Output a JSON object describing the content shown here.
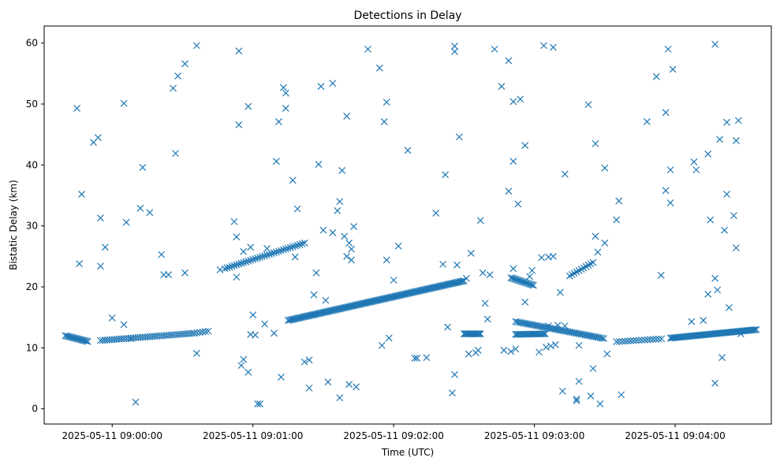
{
  "chart_data": {
    "type": "scatter",
    "title": "Detections in Delay",
    "xlabel": "Time (UTC)",
    "ylabel": "Bistatic Delay (km)",
    "x_unit": "time",
    "xlim": [
      "2025-05-11 08:59:31",
      "2025-05-11 09:04:41"
    ],
    "ylim": [
      -2.5,
      62.8
    ],
    "x_ticks": [
      {
        "value": "2025-05-11 09:00:00",
        "label": "2025-05-11 09:00:00"
      },
      {
        "value": "2025-05-11 09:01:00",
        "label": "2025-05-11 09:01:00"
      },
      {
        "value": "2025-05-11 09:02:00",
        "label": "2025-05-11 09:02:00"
      },
      {
        "value": "2025-05-11 09:03:00",
        "label": "2025-05-11 09:03:00"
      },
      {
        "value": "2025-05-11 09:04:00",
        "label": "2025-05-11 09:04:00"
      }
    ],
    "y_ticks": [
      0,
      10,
      20,
      30,
      40,
      50,
      60
    ],
    "grid": false,
    "legend": "none",
    "marker": "x",
    "color": "#1f77b4",
    "series": [
      {
        "tracks": [
          {
            "t": [
              "08:59:40",
              "08:59:50"
            ],
            "y": [
              12.0,
              11.0
            ],
            "step": 0.6
          },
          {
            "t": [
              "08:59:55",
              "09:00:35"
            ],
            "y": [
              11.2,
              12.4
            ],
            "step": 1.0
          },
          {
            "t": [
              "09:00:35",
              "09:00:42"
            ],
            "y": [
              12.4,
              12.8
            ],
            "step": 1.2
          },
          {
            "t": [
              "09:00:48",
              "09:01:22"
            ],
            "y": [
              23.0,
              27.2
            ],
            "step": 1.0
          },
          {
            "t": [
              "09:01:15",
              "09:02:30"
            ],
            "y": [
              14.5,
              21.0
            ],
            "step": 0.6
          },
          {
            "t": [
              "09:02:30",
              "09:02:37"
            ],
            "y": [
              12.3,
              12.3
            ],
            "step": 0.5
          },
          {
            "t": [
              "09:02:50",
              "09:03:00"
            ],
            "y": [
              21.5,
              20.2
            ],
            "step": 0.6
          },
          {
            "t": [
              "09:02:52",
              "09:03:05"
            ],
            "y": [
              12.2,
              12.3
            ],
            "step": 0.6
          },
          {
            "t": [
              "09:02:52",
              "09:03:30"
            ],
            "y": [
              14.3,
              11.5
            ],
            "step": 0.8
          },
          {
            "t": [
              "09:03:15",
              "09:03:25"
            ],
            "y": [
              21.8,
              24.0
            ],
            "step": 1.0
          },
          {
            "t": [
              "09:03:35",
              "09:03:55"
            ],
            "y": [
              11.0,
              11.5
            ],
            "step": 1.2
          },
          {
            "t": [
              "09:03:58",
              "09:04:35"
            ],
            "y": [
              11.6,
              13.0
            ],
            "step": 0.6
          }
        ],
        "points": [
          [
            "08:59:45",
            49.3
          ],
          [
            "08:59:47",
            35.2
          ],
          [
            "08:59:46",
            23.8
          ],
          [
            "08:59:52",
            43.7
          ],
          [
            "08:59:54",
            44.5
          ],
          [
            "08:59:55",
            31.3
          ],
          [
            "08:59:55",
            23.4
          ],
          [
            "08:59:57",
            26.5
          ],
          [
            "09:00:00",
            14.9
          ],
          [
            "09:00:05",
            50.1
          ],
          [
            "09:00:06",
            30.6
          ],
          [
            "09:00:05",
            13.8
          ],
          [
            "09:00:08",
            11.5
          ],
          [
            "09:00:10",
            1.1
          ],
          [
            "09:00:13",
            39.6
          ],
          [
            "09:00:12",
            32.9
          ],
          [
            "09:00:16",
            32.2
          ],
          [
            "09:00:21",
            25.3
          ],
          [
            "09:00:22",
            22.0
          ],
          [
            "09:00:24",
            22.0
          ],
          [
            "09:00:26",
            52.6
          ],
          [
            "09:00:27",
            41.9
          ],
          [
            "09:00:28",
            54.6
          ],
          [
            "09:00:31",
            56.6
          ],
          [
            "09:00:31",
            22.3
          ],
          [
            "09:00:36",
            9.1
          ],
          [
            "09:00:36",
            59.6
          ],
          [
            "09:00:46",
            22.8
          ],
          [
            "09:00:52",
            30.7
          ],
          [
            "09:00:53",
            28.2
          ],
          [
            "09:00:53",
            21.6
          ],
          [
            "09:00:54",
            58.7
          ],
          [
            "09:00:54",
            46.6
          ],
          [
            "09:00:55",
            7.1
          ],
          [
            "09:00:56",
            8.1
          ],
          [
            "09:00:56",
            25.8
          ],
          [
            "09:00:58",
            49.6
          ],
          [
            "09:00:58",
            6.0
          ],
          [
            "09:00:59",
            26.5
          ],
          [
            "09:00:59",
            12.2
          ],
          [
            "09:01:00",
            15.4
          ],
          [
            "09:01:01",
            12.1
          ],
          [
            "09:01:02",
            0.8
          ],
          [
            "09:01:03",
            0.8
          ],
          [
            "09:01:05",
            13.9
          ],
          [
            "09:01:06",
            26.3
          ],
          [
            "09:01:10",
            40.6
          ],
          [
            "09:01:11",
            47.1
          ],
          [
            "09:01:13",
            52.7
          ],
          [
            "09:01:14",
            51.8
          ],
          [
            "09:01:14",
            49.3
          ],
          [
            "09:01:12",
            5.2
          ],
          [
            "09:01:17",
            37.5
          ],
          [
            "09:01:18",
            24.9
          ],
          [
            "09:01:19",
            32.8
          ],
          [
            "09:01:09",
            12.4
          ],
          [
            "09:01:22",
            7.7
          ],
          [
            "09:01:24",
            8.0
          ],
          [
            "09:01:24",
            3.4
          ],
          [
            "09:01:26",
            18.7
          ],
          [
            "09:01:27",
            22.3
          ],
          [
            "09:01:28",
            40.1
          ],
          [
            "09:01:29",
            52.9
          ],
          [
            "09:01:30",
            29.3
          ],
          [
            "09:01:31",
            17.8
          ],
          [
            "09:01:32",
            4.4
          ],
          [
            "09:01:34",
            53.4
          ],
          [
            "09:01:34",
            28.9
          ],
          [
            "09:01:36",
            32.5
          ],
          [
            "09:01:37",
            34.0
          ],
          [
            "09:01:37",
            1.8
          ],
          [
            "09:01:38",
            39.1
          ],
          [
            "09:01:40",
            48.0
          ],
          [
            "09:01:39",
            28.3
          ],
          [
            "09:01:40",
            25.0
          ],
          [
            "09:01:41",
            27.2
          ],
          [
            "09:01:41",
            4.0
          ],
          [
            "09:01:42",
            26.2
          ],
          [
            "09:01:42",
            24.4
          ],
          [
            "09:01:43",
            29.9
          ],
          [
            "09:01:44",
            3.6
          ],
          [
            "09:01:49",
            59.0
          ],
          [
            "09:01:54",
            55.9
          ],
          [
            "09:01:55",
            10.4
          ],
          [
            "09:01:56",
            47.1
          ],
          [
            "09:01:57",
            24.4
          ],
          [
            "09:01:58",
            11.6
          ],
          [
            "09:01:57",
            50.3
          ],
          [
            "09:02:00",
            21.1
          ],
          [
            "09:02:02",
            26.7
          ],
          [
            "09:02:06",
            42.4
          ],
          [
            "09:02:09",
            8.3
          ],
          [
            "09:02:10",
            8.3
          ],
          [
            "09:02:14",
            8.4
          ],
          [
            "09:02:18",
            32.1
          ],
          [
            "09:02:21",
            23.7
          ],
          [
            "09:02:22",
            38.4
          ],
          [
            "09:02:23",
            13.4
          ],
          [
            "09:02:25",
            2.6
          ],
          [
            "09:02:26",
            5.6
          ],
          [
            "09:02:26",
            59.5
          ],
          [
            "09:02:26",
            58.6
          ],
          [
            "09:02:28",
            44.6
          ],
          [
            "09:02:27",
            23.6
          ],
          [
            "09:02:31",
            21.4
          ],
          [
            "09:02:32",
            9.0
          ],
          [
            "09:02:33",
            25.5
          ],
          [
            "09:02:35",
            9.2
          ],
          [
            "09:02:36",
            9.6
          ],
          [
            "09:02:37",
            30.9
          ],
          [
            "09:02:38",
            22.3
          ],
          [
            "09:02:39",
            17.3
          ],
          [
            "09:02:40",
            14.7
          ],
          [
            "09:02:41",
            22.0
          ],
          [
            "09:02:43",
            59.0
          ],
          [
            "09:02:46",
            52.9
          ],
          [
            "09:02:47",
            9.6
          ],
          [
            "09:02:49",
            57.1
          ],
          [
            "09:02:49",
            35.7
          ],
          [
            "09:02:50",
            9.4
          ],
          [
            "09:02:51",
            23.0
          ],
          [
            "09:02:51",
            40.6
          ],
          [
            "09:02:51",
            50.4
          ],
          [
            "09:02:52",
            9.8
          ],
          [
            "09:02:53",
            33.6
          ],
          [
            "09:02:54",
            50.8
          ],
          [
            "09:02:56",
            43.2
          ],
          [
            "09:02:56",
            17.5
          ],
          [
            "09:02:58",
            21.7
          ],
          [
            "09:02:59",
            22.7
          ],
          [
            "09:03:02",
            9.3
          ],
          [
            "09:03:03",
            24.8
          ],
          [
            "09:03:04",
            59.6
          ],
          [
            "09:03:05",
            10.1
          ],
          [
            "09:03:06",
            24.9
          ],
          [
            "09:03:06",
            13.6
          ],
          [
            "09:03:07",
            10.3
          ],
          [
            "09:03:08",
            25.0
          ],
          [
            "09:03:08",
            59.3
          ],
          [
            "09:03:09",
            10.5
          ],
          [
            "09:03:10",
            13.7
          ],
          [
            "09:03:11",
            19.1
          ],
          [
            "09:03:12",
            2.9
          ],
          [
            "09:03:13",
            38.5
          ],
          [
            "09:03:13",
            13.6
          ],
          [
            "09:03:18",
            1.6
          ],
          [
            "09:03:18",
            1.3
          ],
          [
            "09:03:19",
            4.5
          ],
          [
            "09:03:19",
            10.4
          ],
          [
            "09:03:23",
            49.9
          ],
          [
            "09:03:24",
            2.1
          ],
          [
            "09:03:25",
            6.6
          ],
          [
            "09:03:26",
            43.5
          ],
          [
            "09:03:26",
            28.3
          ],
          [
            "09:03:27",
            25.7
          ],
          [
            "09:03:28",
            0.8
          ],
          [
            "09:03:30",
            39.5
          ],
          [
            "09:03:30",
            27.2
          ],
          [
            "09:03:31",
            9.0
          ],
          [
            "09:03:36",
            34.1
          ],
          [
            "09:03:35",
            31.0
          ],
          [
            "09:03:37",
            2.3
          ],
          [
            "09:03:48",
            47.1
          ],
          [
            "09:03:52",
            54.5
          ],
          [
            "09:03:54",
            21.9
          ],
          [
            "09:03:56",
            48.6
          ],
          [
            "09:03:56",
            35.8
          ],
          [
            "09:03:57",
            59.0
          ],
          [
            "09:03:58",
            39.2
          ],
          [
            "09:03:58",
            33.8
          ],
          [
            "09:03:59",
            55.7
          ],
          [
            "09:04:07",
            14.3
          ],
          [
            "09:04:08",
            40.5
          ],
          [
            "09:04:09",
            39.2
          ],
          [
            "09:04:12",
            14.5
          ],
          [
            "09:04:14",
            41.8
          ],
          [
            "09:04:15",
            31.0
          ],
          [
            "09:04:14",
            18.8
          ],
          [
            "09:04:17",
            59.8
          ],
          [
            "09:04:17",
            21.4
          ],
          [
            "09:04:17",
            4.2
          ],
          [
            "09:04:18",
            19.5
          ],
          [
            "09:04:19",
            44.2
          ],
          [
            "09:04:20",
            8.4
          ],
          [
            "09:04:21",
            29.3
          ],
          [
            "09:04:22",
            35.2
          ],
          [
            "09:04:22",
            47.0
          ],
          [
            "09:04:23",
            16.6
          ],
          [
            "09:04:25",
            31.7
          ],
          [
            "09:04:26",
            26.4
          ],
          [
            "09:04:26",
            44.0
          ],
          [
            "09:04:27",
            47.3
          ],
          [
            "09:04:28",
            12.3
          ]
        ]
      }
    ]
  }
}
